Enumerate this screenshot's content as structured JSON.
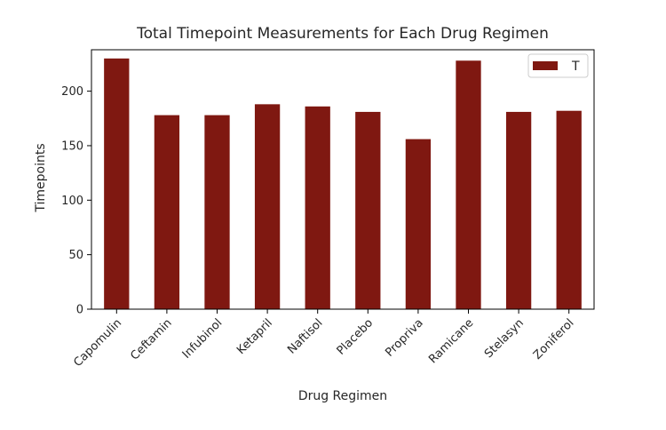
{
  "chart_data": {
    "type": "bar",
    "title": "Total Timepoint Measurements for Each Drug Regimen",
    "xlabel": "Drug Regimen",
    "ylabel": "Timepoints",
    "categories": [
      "Capomulin",
      "Ceftamin",
      "Infubinol",
      "Ketapril",
      "Naftisol",
      "Placebo",
      "Propriva",
      "Ramicane",
      "Stelasyn",
      "Zoniferol"
    ],
    "series": [
      {
        "name": "T",
        "values": [
          230,
          178,
          178,
          188,
          186,
          181,
          156,
          228,
          181,
          182
        ],
        "color": "#7f1811"
      }
    ],
    "ylim": [
      0,
      238
    ],
    "yticks": [
      0,
      50,
      100,
      150,
      200
    ],
    "grid": false,
    "legend_position": "top-right"
  }
}
